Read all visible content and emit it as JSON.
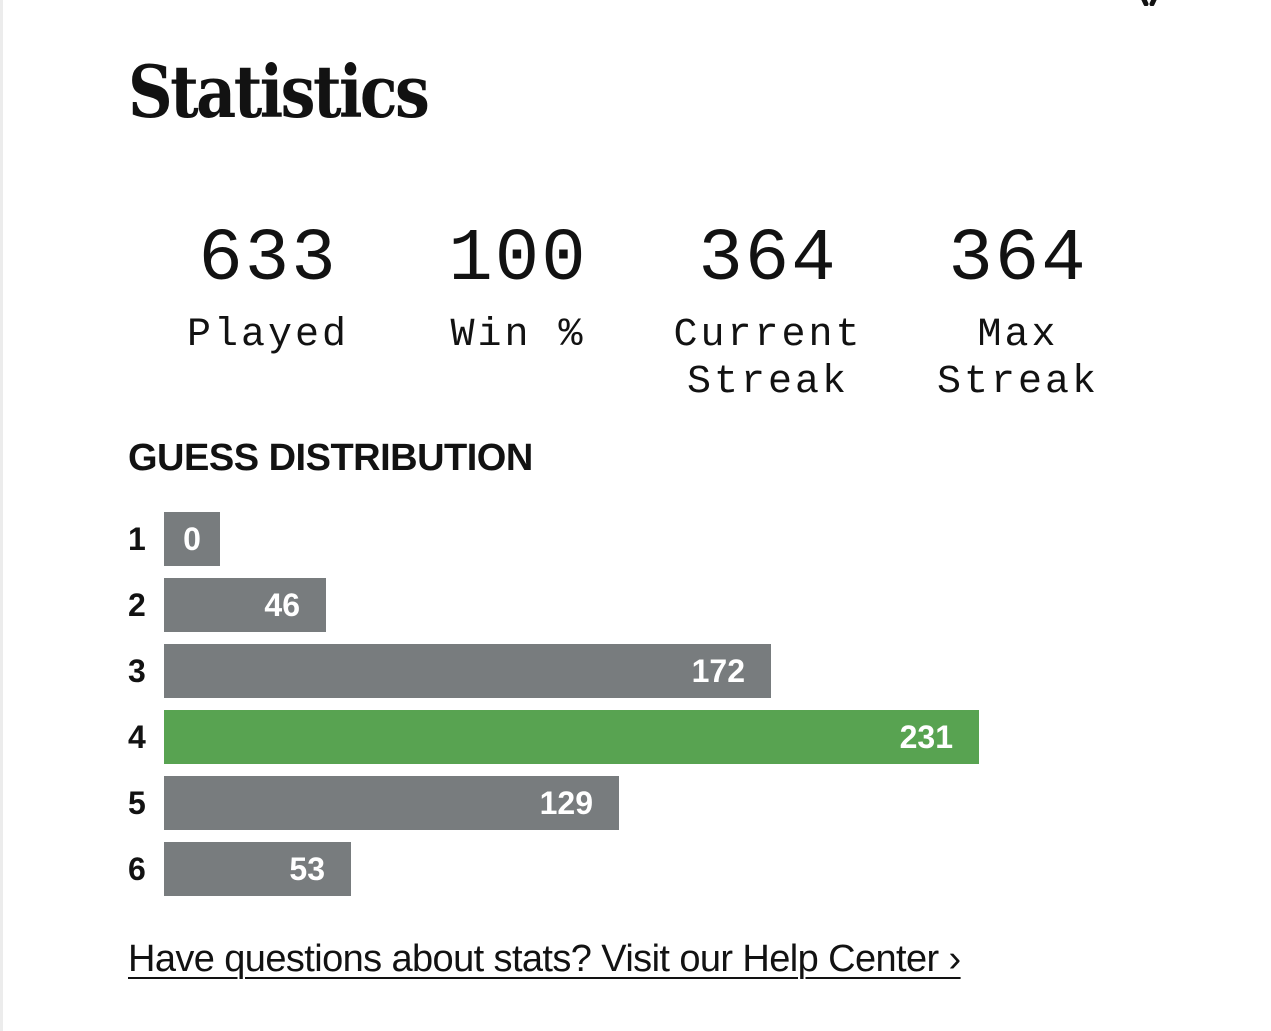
{
  "header": {
    "title": "Statistics"
  },
  "stats": [
    {
      "value": "633",
      "label": "Played"
    },
    {
      "value": "100",
      "label": "Win %"
    },
    {
      "value": "364",
      "label": "Current\nStreak"
    },
    {
      "value": "364",
      "label": "Max\nStreak"
    }
  ],
  "distribution": {
    "heading": "GUESS DISTRIBUTION",
    "highlight_color": "#58a351",
    "bar_color": "#787c7e",
    "rows": [
      {
        "guess": "1",
        "count": "0",
        "highlighted": false
      },
      {
        "guess": "2",
        "count": "46",
        "highlighted": false
      },
      {
        "guess": "3",
        "count": "172",
        "highlighted": false
      },
      {
        "guess": "4",
        "count": "231",
        "highlighted": true
      },
      {
        "guess": "5",
        "count": "129",
        "highlighted": false
      },
      {
        "guess": "6",
        "count": "53",
        "highlighted": false
      }
    ]
  },
  "footer": {
    "help_link": "Have questions about stats? Visit our Help Center ›"
  },
  "icons": {
    "close": "close-icon"
  }
}
